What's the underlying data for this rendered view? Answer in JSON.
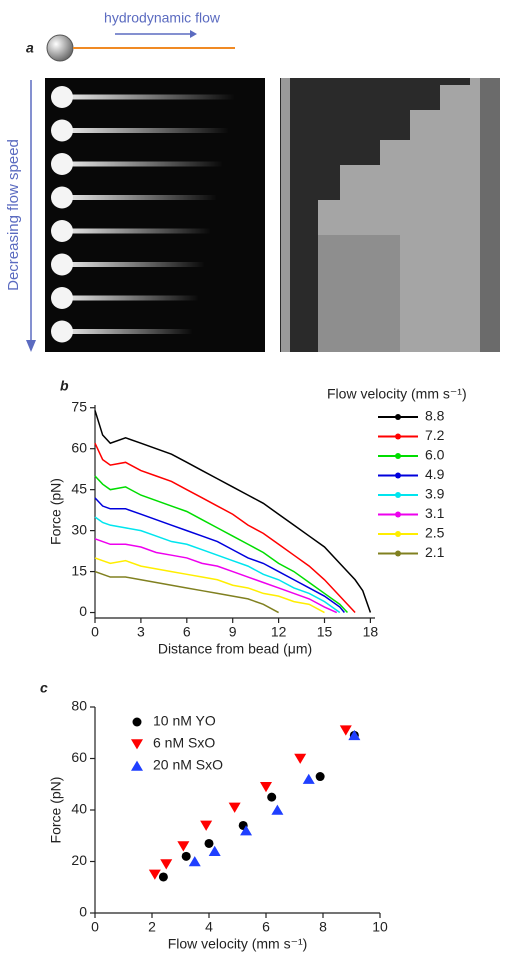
{
  "panel_a": {
    "label": "a",
    "flow_label": "hydrodynamic flow",
    "speed_label": "Decreasing flow speed"
  },
  "chart_data": [
    {
      "type": "line",
      "panel_label": "b",
      "x_label": "Distance from bead (μm)",
      "y_label": "Force (pN)",
      "legend_title": "Flow velocity (mm s⁻¹)",
      "legend": "right",
      "xlim": [
        0,
        18.3
      ],
      "xticks": [
        0,
        3,
        6,
        9,
        12,
        15,
        18
      ],
      "ylim": [
        -2,
        76
      ],
      "yticks": [
        0,
        15,
        30,
        45,
        60,
        75
      ],
      "series": [
        {
          "name": "8.8",
          "color": "#000000",
          "x": [
            0,
            0.5,
            1,
            2,
            3,
            4,
            5,
            6,
            7,
            8,
            9,
            10,
            11,
            12,
            13,
            14,
            15,
            16,
            17,
            17.5,
            18
          ],
          "values": [
            74,
            65,
            62,
            64,
            62,
            60,
            58,
            55,
            52,
            49,
            46,
            43,
            40,
            36,
            32,
            28,
            24,
            18,
            12,
            8,
            0
          ]
        },
        {
          "name": "7.2",
          "color": "#ff0000",
          "x": [
            0,
            0.5,
            1,
            2,
            3,
            4,
            5,
            6,
            7,
            8,
            9,
            10,
            11,
            12,
            13,
            14,
            15,
            16,
            17
          ],
          "values": [
            62,
            56,
            54,
            55,
            52,
            50,
            48,
            45,
            42,
            39,
            36,
            32,
            29,
            25,
            21,
            17,
            12,
            6,
            0
          ]
        },
        {
          "name": "6.0",
          "color": "#00dd00",
          "x": [
            0,
            0.5,
            1,
            2,
            3,
            4,
            5,
            6,
            7,
            8,
            9,
            10,
            11,
            12,
            13,
            14,
            15,
            16,
            16.5
          ],
          "values": [
            50,
            47,
            45,
            46,
            43,
            41,
            39,
            37,
            34,
            31,
            28,
            25,
            22,
            18,
            15,
            11,
            7,
            3,
            0
          ]
        },
        {
          "name": "4.9",
          "color": "#0000dd",
          "x": [
            0,
            0.5,
            1,
            2,
            3,
            4,
            5,
            6,
            7,
            8,
            9,
            10,
            11,
            12,
            13,
            14,
            15,
            16,
            16.3
          ],
          "values": [
            42,
            39,
            38,
            38,
            36,
            34,
            32,
            30,
            28,
            26,
            23,
            20,
            18,
            15,
            12,
            9,
            6,
            2,
            0
          ]
        },
        {
          "name": "3.9",
          "color": "#00e5ee",
          "x": [
            0,
            0.5,
            1,
            2,
            3,
            4,
            5,
            6,
            7,
            8,
            9,
            10,
            11,
            12,
            13,
            14,
            15,
            16
          ],
          "values": [
            35,
            33,
            32,
            31,
            30,
            28,
            26,
            25,
            23,
            21,
            19,
            17,
            14,
            12,
            9,
            7,
            4,
            0
          ]
        },
        {
          "name": "3.1",
          "color": "#ee00ee",
          "x": [
            0,
            0.5,
            1,
            2,
            3,
            4,
            5,
            6,
            7,
            8,
            9,
            10,
            11,
            12,
            13,
            14,
            15,
            15.8
          ],
          "values": [
            27,
            26,
            25,
            25,
            24,
            22,
            21,
            20,
            18,
            17,
            15,
            13,
            11,
            9,
            7,
            5,
            2,
            0
          ]
        },
        {
          "name": "2.5",
          "color": "#ffee00",
          "x": [
            0,
            0.5,
            1,
            2,
            3,
            4,
            5,
            6,
            7,
            8,
            9,
            10,
            11,
            12,
            13,
            14,
            15
          ],
          "values": [
            20,
            19,
            18,
            19,
            17,
            16,
            15,
            14,
            13,
            12,
            10,
            9,
            7,
            6,
            4,
            3,
            0
          ]
        },
        {
          "name": "2.1",
          "color": "#808020",
          "x": [
            0,
            0.5,
            1,
            2,
            3,
            4,
            5,
            6,
            7,
            8,
            9,
            10,
            11,
            12
          ],
          "values": [
            15,
            14,
            13,
            13,
            12,
            11,
            10,
            9,
            8,
            7,
            6,
            5,
            3,
            0
          ]
        }
      ]
    },
    {
      "type": "scatter",
      "panel_label": "c",
      "x_label": "Flow velocity (mm s⁻¹)",
      "y_label": "Force (pN)",
      "legend": "upper left",
      "xlim": [
        0,
        10
      ],
      "xticks": [
        0,
        2,
        4,
        6,
        8,
        10
      ],
      "ylim": [
        0,
        80
      ],
      "yticks": [
        0,
        20,
        40,
        60,
        80
      ],
      "series": [
        {
          "name": "10 nM YO",
          "color": "#000000",
          "marker": "circle",
          "x": [
            2.4,
            3.2,
            4.0,
            5.2,
            6.2,
            7.9,
            9.1
          ],
          "values": [
            14,
            22,
            27,
            34,
            45,
            53,
            69
          ]
        },
        {
          "name": "6 nM SxO",
          "color": "#ff0000",
          "marker": "triangle-down",
          "x": [
            2.1,
            2.5,
            3.1,
            3.9,
            4.9,
            6.0,
            7.2,
            8.8
          ],
          "values": [
            15,
            19,
            26,
            34,
            41,
            49,
            60,
            71
          ]
        },
        {
          "name": "20 nM SxO",
          "color": "#1f3fff",
          "marker": "triangle-up",
          "x": [
            3.5,
            4.2,
            5.3,
            6.4,
            7.5,
            9.1
          ],
          "values": [
            20,
            24,
            32,
            40,
            52,
            69
          ]
        }
      ]
    }
  ]
}
